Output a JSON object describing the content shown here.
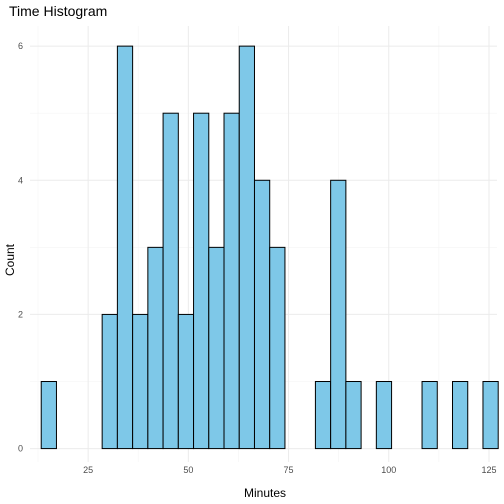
{
  "chart_data": {
    "type": "bar",
    "title": "Time Histogram",
    "xlabel": "Minutes",
    "ylabel": "Count",
    "xlim": [
      10.5,
      127
    ],
    "ylim": [
      -0.2,
      6.3
    ],
    "x_ticks": [
      25,
      50,
      75,
      100,
      125
    ],
    "y_ticks": [
      0,
      2,
      4,
      6
    ],
    "bin_width": 3.8,
    "bin_start": 13.3,
    "counts": [
      1,
      0,
      0,
      0,
      2,
      6,
      2,
      3,
      5,
      2,
      5,
      3,
      5,
      6,
      4,
      3,
      0,
      0,
      1,
      4,
      1,
      0,
      1,
      0,
      0,
      1,
      0,
      1,
      0,
      1
    ],
    "fill_color": "#7ec8e8",
    "outline_color": "#000000",
    "grid": true
  }
}
